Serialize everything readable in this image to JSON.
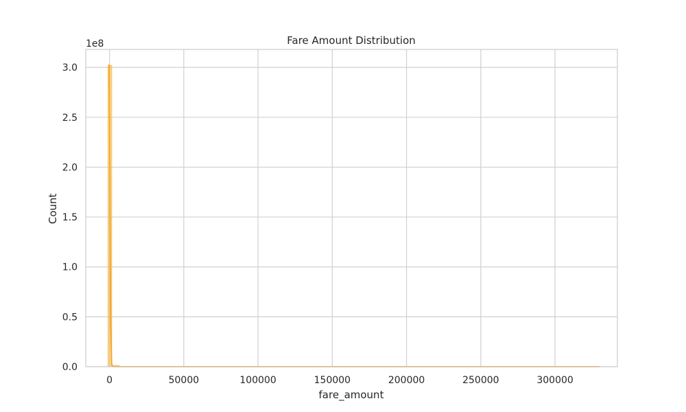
{
  "chart_data": {
    "type": "histogram",
    "title": "Fare Amount Distribution",
    "xlabel": "fare_amount",
    "ylabel": "Count",
    "y_offset_label": "1e8",
    "xlim": [
      -16000,
      342000
    ],
    "ylim": [
      0,
      3.18
    ],
    "y_scale_factor": 100000000,
    "xticks": [
      0,
      50000,
      100000,
      150000,
      200000,
      250000,
      300000
    ],
    "xtick_labels": [
      "0",
      "50000",
      "100000",
      "150000",
      "200000",
      "250000",
      "300000"
    ],
    "yticks": [
      0.0,
      0.5,
      1.0,
      1.5,
      2.0,
      2.5,
      3.0
    ],
    "ytick_labels": [
      "0.0",
      "0.5",
      "1.0",
      "1.5",
      "2.0",
      "2.5",
      "3.0"
    ],
    "grid": true,
    "bins": [
      {
        "x0": -1000,
        "x1": 1500,
        "count": 3.02
      },
      {
        "x0": 1500,
        "x1": 6500,
        "count": 0.012
      }
    ],
    "kde_line": {
      "x": [
        -200,
        0,
        800,
        1500,
        2500,
        6000,
        330000
      ],
      "y": [
        3.03,
        2.6,
        0.4,
        0.02,
        0.0,
        0.0,
        0.0
      ]
    },
    "colors": {
      "bar": "#f5b84a",
      "line": "#f5a623",
      "grid": "#d0d0d0",
      "frame": "#cccccc"
    }
  }
}
